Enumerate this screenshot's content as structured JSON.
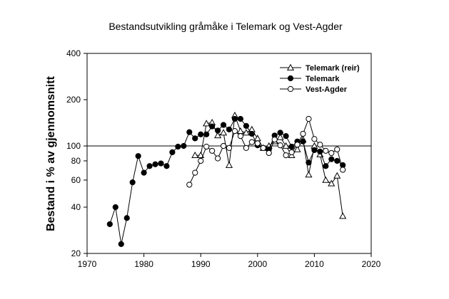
{
  "chart_data": {
    "type": "line",
    "title": "Bestandsutvikling gråmåke i Telemark og Vest-Agder",
    "xlabel": "",
    "ylabel": "Bestand i % av gjennomsnitt",
    "xlim": [
      1970,
      2020
    ],
    "ylim": [
      20,
      400
    ],
    "yscale": "log",
    "xticks": [
      1970,
      1980,
      1990,
      2000,
      2010,
      2020
    ],
    "yticks": [
      20,
      40,
      60,
      80,
      100,
      200,
      400
    ],
    "reference_line": 100,
    "grid": false,
    "legend_position": "top-right",
    "series": [
      {
        "name": "Telemark (reir)",
        "marker": "triangle-open",
        "points": [
          [
            1989,
            87
          ],
          [
            1990,
            87
          ],
          [
            1991,
            140
          ],
          [
            1992,
            142
          ],
          [
            1993,
            117
          ],
          [
            1994,
            122
          ],
          [
            1995,
            75
          ],
          [
            1996,
            158
          ],
          [
            1997,
            125
          ],
          [
            1998,
            122
          ],
          [
            1999,
            128
          ],
          [
            2000,
            112
          ],
          [
            2001,
            97
          ],
          [
            2002,
            100
          ],
          [
            2003,
            107
          ],
          [
            2004,
            114
          ],
          [
            2005,
            100
          ],
          [
            2006,
            87
          ],
          [
            2007,
            95
          ],
          [
            2008,
            110
          ],
          [
            2009,
            65
          ],
          [
            2010,
            100
          ],
          [
            2011,
            88
          ],
          [
            2012,
            60
          ],
          [
            2013,
            57
          ],
          [
            2014,
            64
          ],
          [
            2015,
            35
          ]
        ]
      },
      {
        "name": "Telemark",
        "marker": "circle-filled",
        "points": [
          [
            1974,
            31
          ],
          [
            1975,
            40
          ],
          [
            1976,
            23
          ],
          [
            1977,
            34
          ],
          [
            1978,
            58
          ],
          [
            1979,
            86
          ],
          [
            1980,
            67
          ],
          [
            1981,
            74
          ],
          [
            1982,
            76
          ],
          [
            1983,
            77
          ],
          [
            1984,
            74
          ],
          [
            1985,
            91
          ],
          [
            1986,
            99
          ],
          [
            1987,
            100
          ],
          [
            1988,
            123
          ],
          [
            1989,
            112
          ],
          [
            1990,
            119
          ],
          [
            1991,
            119
          ],
          [
            1992,
            134
          ],
          [
            1993,
            126
          ],
          [
            1994,
            137
          ],
          [
            1995,
            128
          ],
          [
            1996,
            150
          ],
          [
            1997,
            150
          ],
          [
            1998,
            135
          ],
          [
            1999,
            120
          ],
          [
            2000,
            101
          ],
          [
            2001,
            97
          ],
          [
            2002,
            95
          ],
          [
            2003,
            117
          ],
          [
            2004,
            122
          ],
          [
            2005,
            116
          ],
          [
            2006,
            99
          ],
          [
            2007,
            107
          ],
          [
            2008,
            107
          ],
          [
            2009,
            78
          ],
          [
            2010,
            94
          ],
          [
            2011,
            92
          ],
          [
            2012,
            74
          ],
          [
            2013,
            82
          ],
          [
            2014,
            80
          ],
          [
            2015,
            75
          ]
        ]
      },
      {
        "name": "Vest-Agder",
        "marker": "circle-open",
        "points": [
          [
            1988,
            56
          ],
          [
            1989,
            67
          ],
          [
            1990,
            80
          ],
          [
            1991,
            99
          ],
          [
            1992,
            93
          ],
          [
            1993,
            83
          ],
          [
            1994,
            100
          ],
          [
            1995,
            97
          ],
          [
            1996,
            125
          ],
          [
            1997,
            116
          ],
          [
            1998,
            97
          ],
          [
            1999,
            106
          ],
          [
            2000,
            104
          ],
          [
            2001,
            97
          ],
          [
            2002,
            90
          ],
          [
            2003,
            110
          ],
          [
            2004,
            101
          ],
          [
            2005,
            87
          ],
          [
            2006,
            91
          ],
          [
            2007,
            102
          ],
          [
            2008,
            120
          ],
          [
            2009,
            150
          ],
          [
            2010,
            111
          ],
          [
            2011,
            102
          ],
          [
            2012,
            93
          ],
          [
            2013,
            90
          ],
          [
            2014,
            95
          ],
          [
            2015,
            70
          ]
        ]
      }
    ]
  }
}
